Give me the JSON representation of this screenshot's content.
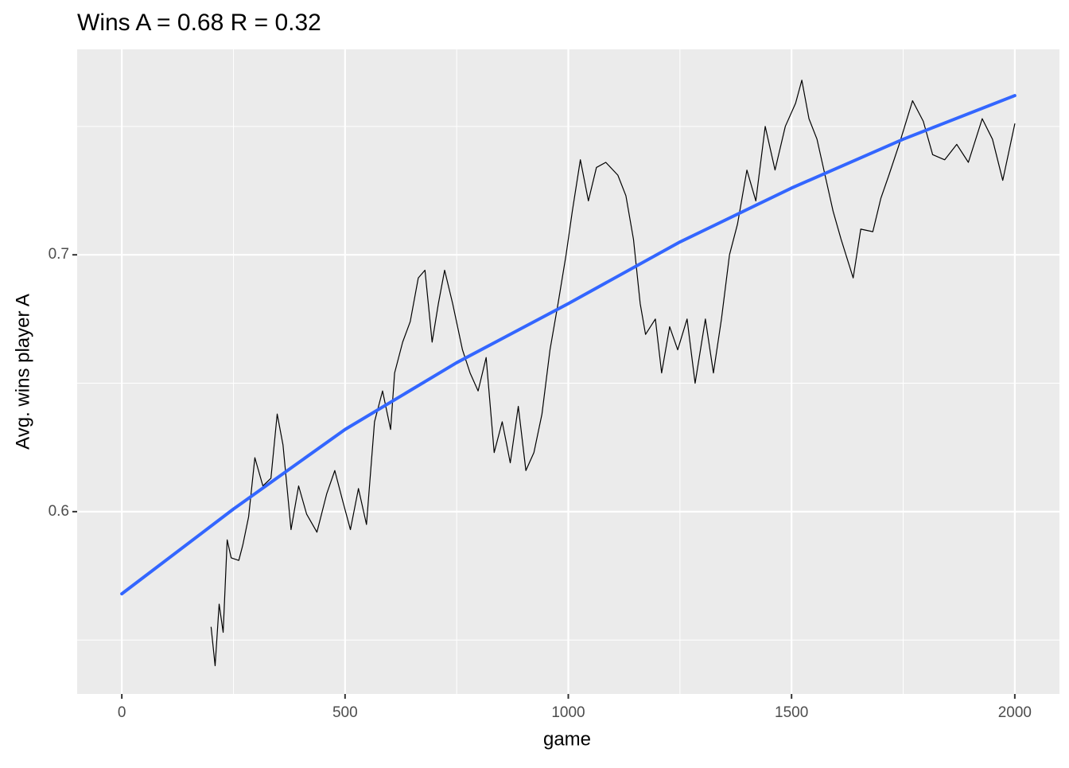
{
  "chart_data": {
    "type": "line",
    "title": "Wins A = 0.68 R = 0.32",
    "x_label": "game",
    "y_label": "Avg. wins player A",
    "xlim": [
      -100,
      2100
    ],
    "ylim": [
      0.529,
      0.78
    ],
    "xticks": [
      0,
      500,
      1000,
      1500,
      2000
    ],
    "yticks": [
      0.6,
      0.7
    ],
    "xminor": [
      250,
      750,
      1250,
      1750
    ],
    "yminor": [
      0.55,
      0.65,
      0.75
    ],
    "grid": true,
    "series": [
      {
        "color": "#000000",
        "width": 1.2,
        "x": [
          200,
          209,
          218,
          227,
          236,
          245,
          262,
          271,
          284,
          298,
          316,
          334,
          348,
          361,
          379,
          396,
          414,
          437,
          459,
          477,
          495,
          512,
          530,
          548,
          566,
          584,
          602,
          611,
          629,
          646,
          664,
          679,
          695,
          709,
          723,
          741,
          763,
          780,
          798,
          816,
          834,
          852,
          870,
          888,
          905,
          923,
          941,
          959,
          977,
          995,
          1009,
          1027,
          1045,
          1063,
          1084,
          1111,
          1129,
          1146,
          1161,
          1173,
          1195,
          1209,
          1227,
          1245,
          1266,
          1284,
          1307,
          1325,
          1343,
          1361,
          1379,
          1400,
          1420,
          1441,
          1463,
          1486,
          1509,
          1523,
          1539,
          1557,
          1575,
          1593,
          1611,
          1638,
          1655,
          1682,
          1700,
          1718,
          1741,
          1771,
          1795,
          1816,
          1843,
          1870,
          1896,
          1927,
          1950,
          1973,
          2000
        ],
        "values": [
          0.555,
          0.54,
          0.564,
          0.553,
          0.589,
          0.582,
          0.581,
          0.587,
          0.598,
          0.621,
          0.61,
          0.613,
          0.638,
          0.626,
          0.593,
          0.61,
          0.599,
          0.592,
          0.607,
          0.616,
          0.604,
          0.593,
          0.609,
          0.595,
          0.635,
          0.647,
          0.632,
          0.654,
          0.666,
          0.674,
          0.691,
          0.694,
          0.666,
          0.681,
          0.694,
          0.681,
          0.663,
          0.654,
          0.647,
          0.66,
          0.623,
          0.635,
          0.619,
          0.641,
          0.616,
          0.623,
          0.638,
          0.663,
          0.681,
          0.7,
          0.717,
          0.737,
          0.721,
          0.734,
          0.736,
          0.731,
          0.723,
          0.706,
          0.681,
          0.669,
          0.675,
          0.654,
          0.672,
          0.663,
          0.675,
          0.65,
          0.675,
          0.654,
          0.675,
          0.7,
          0.712,
          0.733,
          0.721,
          0.75,
          0.733,
          0.75,
          0.759,
          0.768,
          0.753,
          0.745,
          0.731,
          0.717,
          0.706,
          0.691,
          0.71,
          0.709,
          0.722,
          0.731,
          0.743,
          0.76,
          0.752,
          0.739,
          0.737,
          0.743,
          0.736,
          0.753,
          0.745,
          0.729,
          0.751
        ]
      },
      {
        "color": "#3366ff",
        "width": 4,
        "x": [
          0,
          250,
          500,
          750,
          1000,
          1250,
          1500,
          1750,
          2000
        ],
        "values": [
          0.568,
          0.601,
          0.632,
          0.658,
          0.681,
          0.705,
          0.726,
          0.745,
          0.762
        ]
      }
    ]
  }
}
